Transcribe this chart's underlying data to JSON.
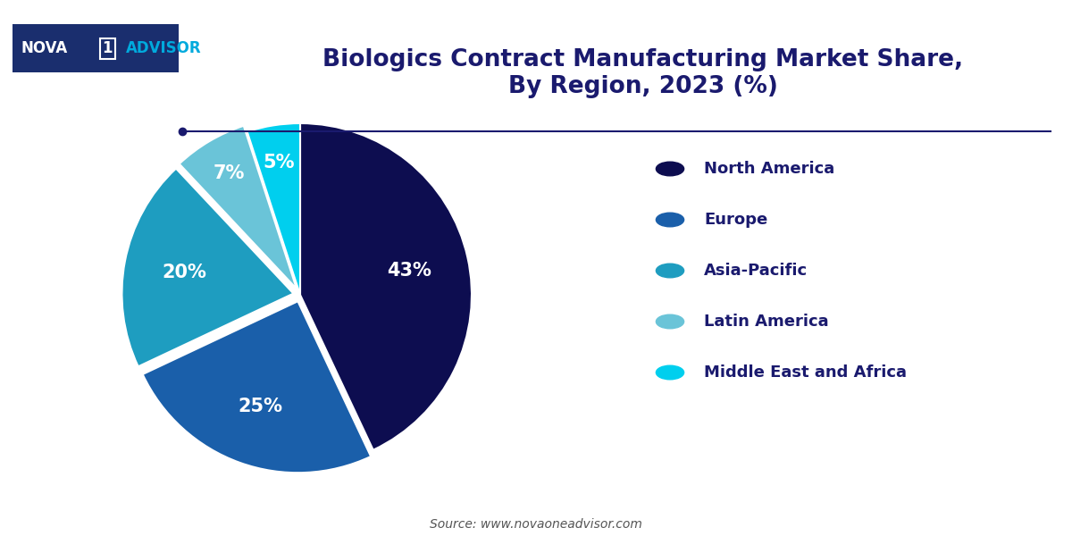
{
  "title": "Biologics Contract Manufacturing Market Share,\nBy Region, 2023 (%)",
  "title_color": "#1a1a6e",
  "title_fontsize": 19,
  "source_text": "Source: www.novaoneadvisor.com",
  "labels": [
    "North America",
    "Europe",
    "Asia-Pacific",
    "Latin America",
    "Middle East and Africa"
  ],
  "values": [
    43,
    25,
    20,
    7,
    5
  ],
  "colors": [
    "#0d0d50",
    "#1a5faa",
    "#1e9dc0",
    "#6ac4d8",
    "#00cfee"
  ],
  "pct_labels": [
    "43%",
    "25%",
    "20%",
    "7%",
    "5%"
  ],
  "explode": [
    0,
    0.04,
    0.04,
    0.04,
    0
  ],
  "startangle": 90,
  "background_color": "#ffffff",
  "line_color": "#1a1a6e",
  "pct_fontsize": 15,
  "legend_fontsize": 13,
  "source_fontsize": 10
}
